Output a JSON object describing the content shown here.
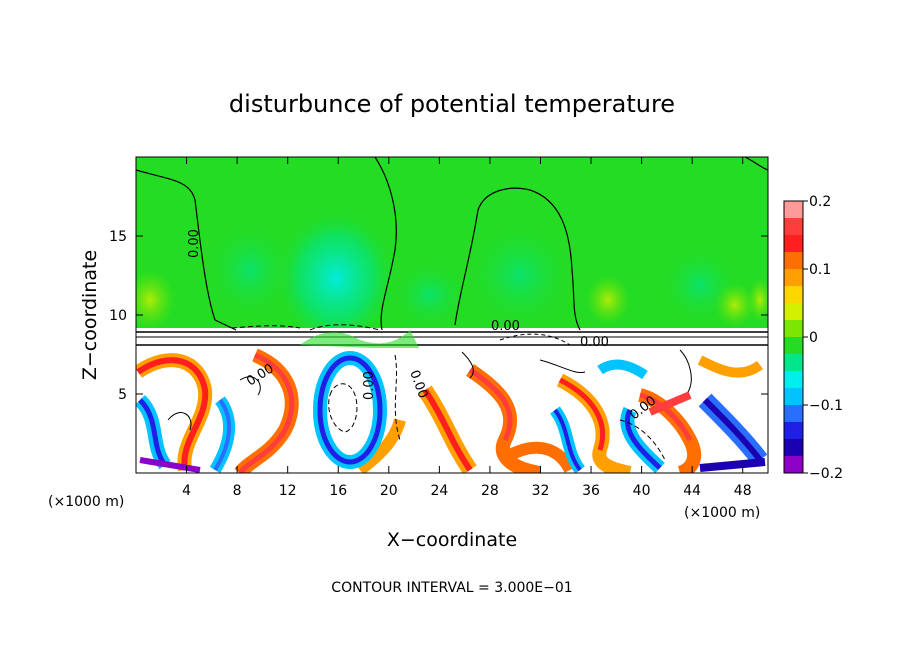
{
  "chart_data": {
    "type": "heatmap",
    "title": "disturbunce of potential temperature",
    "xlabel": "X−coordinate",
    "ylabel": "Z−coordinate",
    "x_unit_left": "(×1000 m)",
    "x_unit_right": "(×1000 m)",
    "xlim": [
      0,
      50
    ],
    "ylim": [
      0,
      20
    ],
    "x_ticks": [
      4,
      8,
      12,
      16,
      20,
      24,
      28,
      32,
      36,
      40,
      44,
      48
    ],
    "x_tick_labels": [
      "4",
      "8",
      "12",
      "16",
      "20",
      "24",
      "28",
      "32",
      "36",
      "40",
      "44",
      "48"
    ],
    "y_ticks": [
      5,
      10,
      15
    ],
    "y_tick_labels": [
      "5",
      "10",
      "15"
    ],
    "colorbar": {
      "min": -0.2,
      "max": 0.2,
      "ticks": [
        0.2,
        0.1,
        0,
        -0.1,
        -0.2
      ],
      "tick_labels": [
        "0.2",
        "0.1",
        "0",
        "−0.1",
        "−0.2"
      ],
      "colors": [
        "#ff9a9a",
        "#ff3d3d",
        "#ff1f1f",
        "#ff6e00",
        "#ffa000",
        "#ffd700",
        "#d2f000",
        "#7be600",
        "#24dc24",
        "#00e68c",
        "#00eeee",
        "#00c3ff",
        "#2a6eff",
        "#1f1fe6",
        "#1a00b0",
        "#8c00c8"
      ]
    },
    "contour_labels": [
      "0.00",
      "0.00",
      "0.00",
      "0.00",
      "0.00",
      "0.00",
      "0.00"
    ],
    "footnote": "CONTOUR INTERVAL = 3.000E−01",
    "legend": "colorbar-right"
  }
}
